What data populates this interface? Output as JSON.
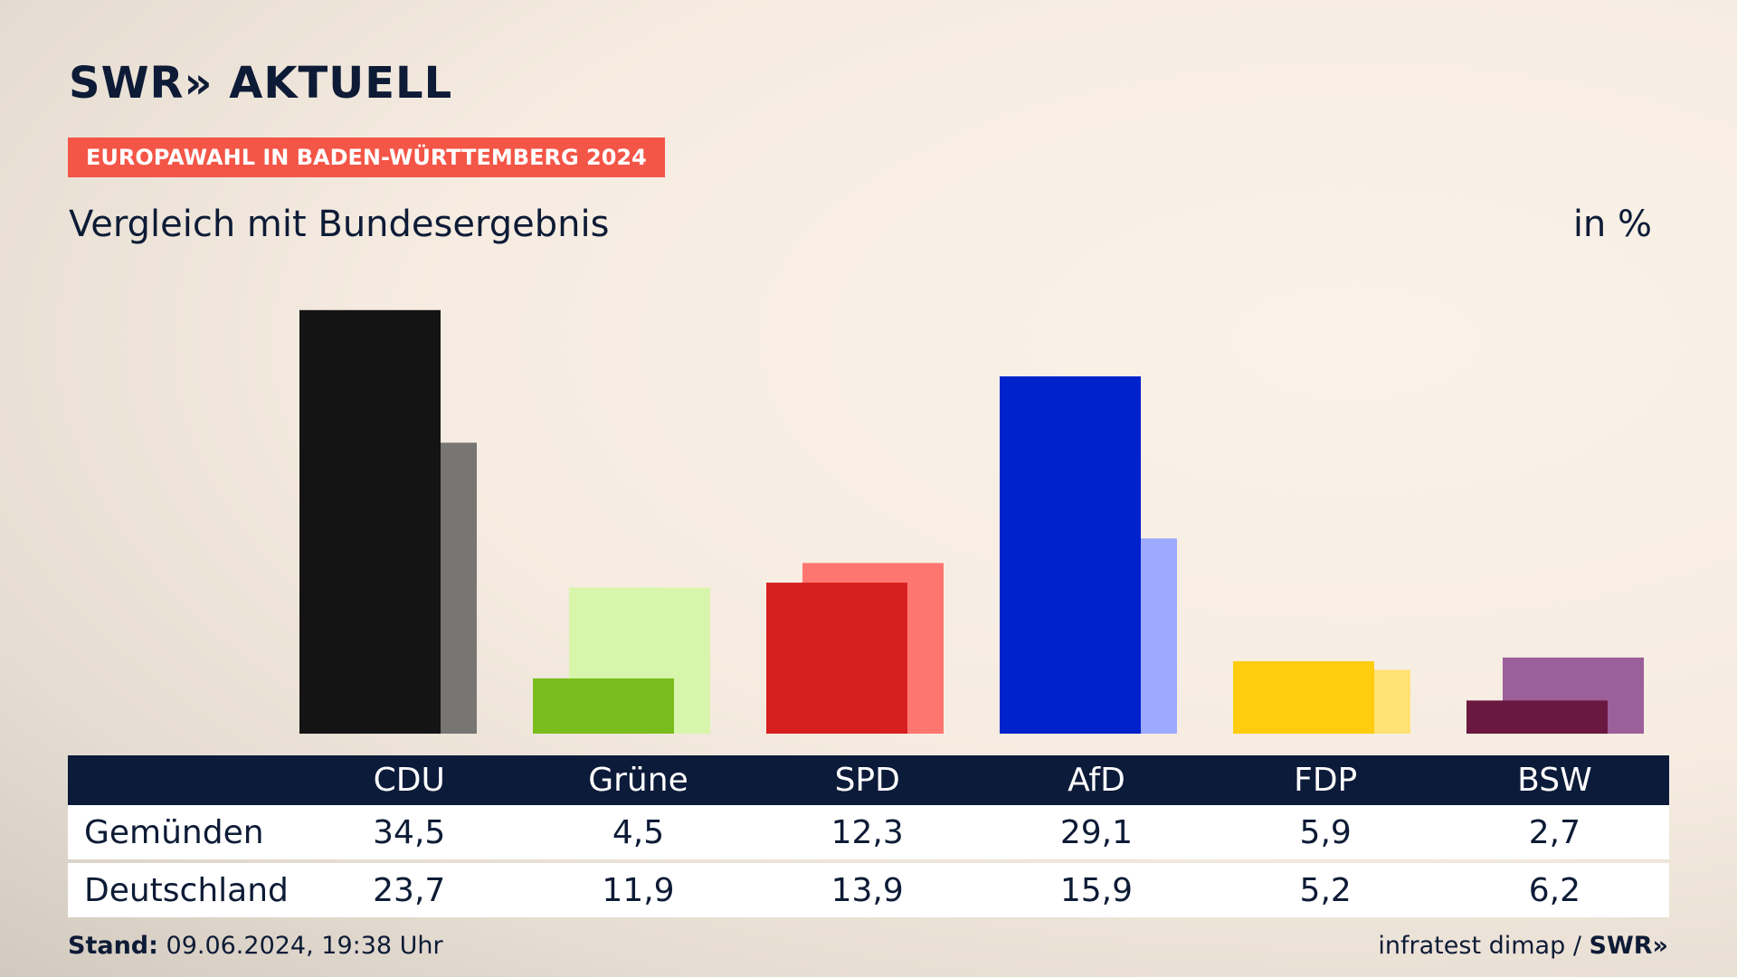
{
  "header": {
    "logo": "SWR» AKTUELL",
    "badge": "EUROPAWAHL IN BADEN-WÜRTTEMBERG 2024",
    "subtitle": "Vergleich mit Bundesergebnis",
    "unit": "in %"
  },
  "table": {
    "row_labels": [
      "Gemünden",
      "Deutschland"
    ]
  },
  "footer": {
    "stand_label": "Stand:",
    "stand_value": "09.06.2024, 19:38 Uhr",
    "source": "infratest dimap /",
    "brand": "SWR»"
  },
  "chart_data": {
    "type": "bar",
    "categories": [
      "CDU",
      "Grüne",
      "SPD",
      "AfD",
      "FDP",
      "BSW"
    ],
    "series": [
      {
        "name": "Gemünden",
        "values": [
          34.5,
          4.5,
          12.3,
          29.1,
          5.9,
          2.7
        ]
      },
      {
        "name": "Deutschland",
        "values": [
          23.7,
          11.9,
          13.9,
          15.9,
          5.2,
          6.2
        ]
      }
    ],
    "value_labels": {
      "Gemünden": [
        "34,5",
        "4,5",
        "12,3",
        "29,1",
        "5,9",
        "2,7"
      ],
      "Deutschland": [
        "23,7",
        "11,9",
        "13,9",
        "15,9",
        "5,2",
        "6,2"
      ]
    },
    "colors": {
      "primary": [
        "#141414",
        "#79bd1d",
        "#d6201f",
        "#0022cc",
        "#ffcc0e",
        "#6b1841"
      ],
      "secondary": [
        "#777673",
        "#d7f5ab",
        "#ff7670",
        "#9eaaff",
        "#ffe273",
        "#9b5f9a"
      ]
    },
    "ylim": [
      0,
      35
    ]
  }
}
